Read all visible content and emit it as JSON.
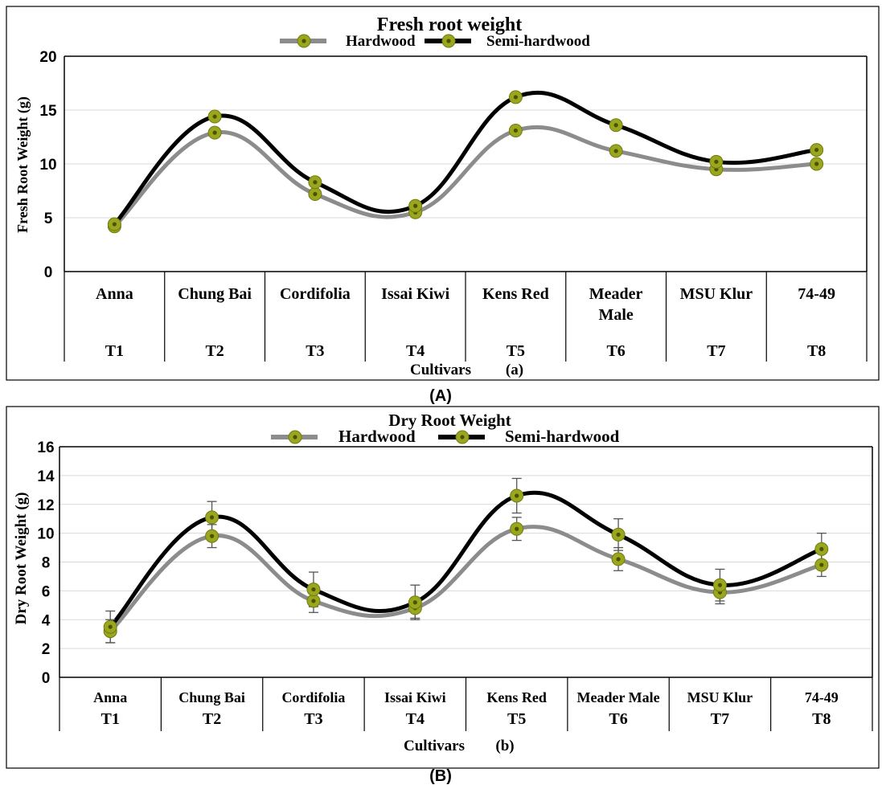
{
  "colors": {
    "hardwood": "#8c8c8c",
    "semi_hardwood": "#000000",
    "marker": "#9aa61e",
    "marker_core": "#4b5200",
    "grid": "#d9d9d9",
    "frame": "#000000"
  },
  "panels": {
    "a": {
      "label": "(A)"
    },
    "b": {
      "label": "(B)"
    }
  },
  "chart_data": [
    {
      "type": "line",
      "smooth": true,
      "title": "Fresh root weight",
      "ylabel": "Fresh Root Weight (g)",
      "xlabel": "Cultivars",
      "xlabel_note": "(a)",
      "ylim": [
        0,
        20
      ],
      "yticks": [
        "0",
        "5",
        "10",
        "15",
        "20"
      ],
      "grid": true,
      "legend_position": "top",
      "categories": [
        "Anna",
        "Chung Bai",
        "Cordifolia",
        "Issai Kiwi",
        "Kens Red",
        "Meader Male",
        "MSU Klur",
        "74-49"
      ],
      "treatments": [
        "T1",
        "T2",
        "T3",
        "T4",
        "T5",
        "T6",
        "T7",
        "T8"
      ],
      "series": [
        {
          "name": "Hardwood",
          "values": [
            4.2,
            12.9,
            7.2,
            5.5,
            13.1,
            11.2,
            9.5,
            10.0
          ]
        },
        {
          "name": "Semi-hardwood",
          "values": [
            4.4,
            14.4,
            8.3,
            6.1,
            16.2,
            13.6,
            10.2,
            11.3
          ]
        }
      ]
    },
    {
      "type": "line",
      "smooth": true,
      "title": "Dry Root Weight",
      "ylabel": "Dry Root Weight (g)",
      "xlabel": "Cultivars",
      "xlabel_note": "(b)",
      "ylim": [
        0,
        16
      ],
      "yticks": [
        "0",
        "2",
        "4",
        "6",
        "8",
        "10",
        "12",
        "14",
        "16"
      ],
      "grid": true,
      "legend_position": "top",
      "error_bars": true,
      "categories": [
        "Anna",
        "Chung Bai",
        "Cordifolia",
        "Issai Kiwi",
        "Kens Red",
        "Meader Male",
        "MSU Klur",
        "74-49"
      ],
      "treatments": [
        "T1",
        "T2",
        "T3",
        "T4",
        "T5",
        "T6",
        "T7",
        "T8"
      ],
      "series": [
        {
          "name": "Hardwood",
          "values": [
            3.2,
            9.8,
            5.3,
            4.8,
            10.3,
            8.2,
            5.9,
            7.8
          ],
          "errors": [
            0.8,
            0.8,
            0.8,
            0.7,
            0.8,
            0.8,
            0.8,
            0.8
          ]
        },
        {
          "name": "Semi-hardwood",
          "values": [
            3.5,
            11.1,
            6.1,
            5.2,
            12.6,
            9.9,
            6.4,
            8.9
          ],
          "errors": [
            1.1,
            1.1,
            1.2,
            1.2,
            1.2,
            1.1,
            1.1,
            1.1
          ]
        }
      ]
    }
  ]
}
